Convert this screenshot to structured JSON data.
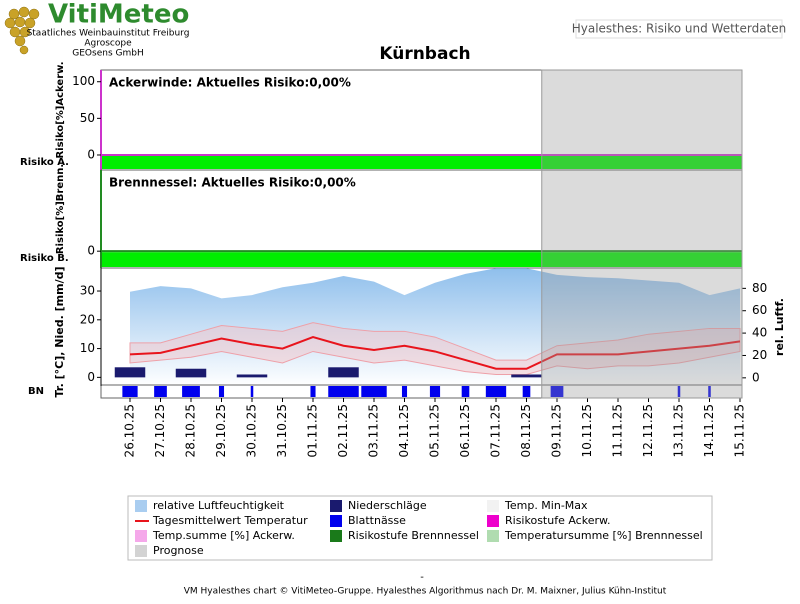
{
  "header": {
    "logo": "VitiMeteo",
    "institutes": [
      "Staatliches Weinbauinstitut Freiburg",
      "Agroscope",
      "GEOsens GmbH"
    ],
    "app_title": "Hyalesthes: Risiko und Wetterdaten",
    "title": "Kürnbach"
  },
  "chart_data": [
    {
      "type": "risk",
      "title": "Ackerwinde: Aktuelles Risiko:0,00%",
      "y_label": "Risiko[%]Ackerw.",
      "row_label": "Risiko A.",
      "ylim": [
        -20.5,
        116
      ],
      "yticks": [
        0,
        50,
        100
      ],
      "axis_color": "#cc33cc",
      "level_color": "#00ee00",
      "values": [
        0,
        0,
        0,
        0,
        0,
        0,
        0,
        0,
        0,
        0,
        0,
        0,
        0,
        0,
        0,
        0,
        0,
        0,
        0,
        0,
        0
      ]
    },
    {
      "type": "risk",
      "title": "Brennnessel: Aktuelles Risiko:0,00%",
      "y_label": "Risiko[%]Brenn.",
      "row_label": "Risiko B.",
      "ylim": [
        -23,
        111
      ],
      "yticks": [
        0
      ],
      "axis_color": "#228b22",
      "level_color": "#00ee00",
      "values": [
        0,
        0,
        0,
        0,
        0,
        0,
        0,
        0,
        0,
        0,
        0,
        0,
        0,
        0,
        0,
        0,
        0,
        0,
        0,
        0,
        0
      ]
    },
    {
      "type": "weather",
      "y_label": "Tr. [°C], Nied. [mm/d]",
      "y2_label": "rel. Luftf.",
      "row_label": "BN",
      "categories": [
        "26.10.25",
        "27.10.25",
        "28.10.25",
        "29.10.25",
        "30.10.25",
        "31.10.25",
        "01.11.25",
        "02.11.25",
        "03.11.25",
        "04.11.25",
        "05.11.25",
        "06.11.25",
        "07.11.25",
        "08.11.25",
        "09.11.25",
        "10.11.25",
        "11.11.25",
        "12.11.25",
        "13.11.25",
        "14.11.25",
        "15.11.25"
      ],
      "ylim": [
        -3,
        38
      ],
      "yticks": [
        0,
        10,
        20,
        30
      ],
      "y2lim": [
        -7.3,
        98.2
      ],
      "y2ticks": [
        0,
        20,
        40,
        60,
        80
      ],
      "prognose_from": "09.11.25",
      "series": [
        {
          "kind": "area",
          "axis": "y2",
          "color": "#8fbfec",
          "values": [
            77,
            82,
            80,
            71,
            74,
            81,
            85,
            91,
            86,
            74,
            85,
            93,
            98,
            98,
            92,
            90,
            89,
            87,
            85,
            74,
            80
          ]
        },
        {
          "kind": "band",
          "color": "#f4c4c8",
          "values": [
            12,
            12,
            15,
            18,
            17,
            16,
            19,
            17,
            16,
            16,
            14,
            10,
            6,
            6,
            11,
            12,
            13,
            15,
            16,
            17,
            17
          ],
          "low": [
            5,
            6,
            7,
            9,
            7,
            5,
            9,
            7,
            5,
            6,
            4,
            2,
            1,
            1,
            4,
            3,
            4,
            4,
            5,
            7,
            9
          ]
        },
        {
          "kind": "line",
          "color": "#e8141c",
          "values": [
            8,
            8.5,
            11,
            13.5,
            11.5,
            10,
            14,
            11,
            9.5,
            11,
            9,
            6,
            3,
            3,
            8,
            8,
            8,
            9,
            10,
            11,
            12.5
          ]
        },
        {
          "kind": "bar",
          "color": "#1a1a6e",
          "values": [
            3.5,
            0,
            3,
            0,
            1,
            0,
            0,
            3.5,
            0,
            0,
            0,
            0,
            0,
            1,
            0,
            0,
            0,
            0,
            0,
            0,
            0
          ]
        },
        {
          "kind": "row",
          "color": "#0000ee",
          "values": [
            12,
            10,
            14,
            4,
            2,
            0,
            4,
            24,
            20,
            4,
            8,
            6,
            16,
            6,
            10,
            0,
            0,
            0,
            2,
            2,
            0
          ]
        }
      ]
    }
  ],
  "legend": [
    {
      "label": "relative Luftfeuchtigkeit",
      "color": "#a9cdf0"
    },
    {
      "label": "Niederschläge",
      "color": "#1a1a6e"
    },
    {
      "label": "Temp. Min-Max",
      "color": "#f2f2f2"
    },
    {
      "label": "Tagesmittelwert Temperatur",
      "color": "#e8141c",
      "style": "line"
    },
    {
      "label": "Blattnässe",
      "color": "#0000ee"
    },
    {
      "label": "Risikostufe Ackerw.",
      "color": "#ee00cc"
    },
    {
      "label": "Temp.summe [%] Ackerw.",
      "color": "#f5a8ea"
    },
    {
      "label": "Risikostufe Brennnessel",
      "color": "#1a7a1a"
    },
    {
      "label": "Temperatursumme [%] Brennnessel",
      "color": "#b0dcb0"
    },
    {
      "label": "Prognose",
      "color": "#d3d3d3"
    }
  ],
  "footer": {
    "dash": "-",
    "credit": "VM Hyalesthes chart © VitiMeteo-Gruppe. Hyalesthes Algorithmus nach Dr. M. Maixner, Julius Kühn-Institut"
  }
}
